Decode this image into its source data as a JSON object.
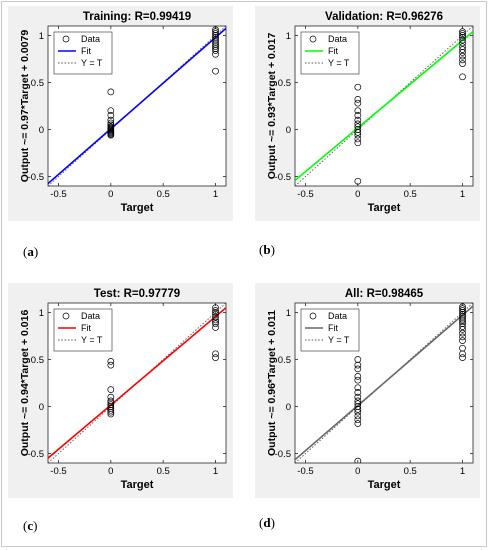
{
  "captions": [
    "a",
    "b",
    "c",
    "d"
  ],
  "chart_data": [
    {
      "type": "scatter",
      "title": "Training: R=0.99419",
      "xlabel": "Target",
      "ylabel": "Output ~= 0.97*Target + 0.0079",
      "xlim": [
        -0.6,
        1.1
      ],
      "ylim": [
        -0.6,
        1.1
      ],
      "xticks": [
        "-0.5",
        "0",
        "0.5",
        "1"
      ],
      "yticks": [
        "-0.5",
        "0",
        "0.5",
        "1"
      ],
      "legend": [
        "Data",
        "Fit",
        "Y = T"
      ],
      "legend_position": "top-left",
      "fit": {
        "slope": 0.97,
        "intercept": 0.0079,
        "color": "#0000ff"
      },
      "points_at_0": [
        0.4,
        0.2,
        0.15,
        0.1,
        0.07,
        0.05,
        0.03,
        0.02,
        0.01,
        0.0,
        -0.01,
        -0.02,
        -0.03,
        -0.04,
        -0.05,
        -0.06
      ],
      "points_at_1": [
        1.06,
        1.04,
        1.02,
        1.0,
        0.98,
        0.96,
        0.94,
        0.92,
        0.9,
        0.88,
        0.86,
        0.84,
        0.8,
        0.62
      ]
    },
    {
      "type": "scatter",
      "title": "Validation: R=0.96276",
      "xlabel": "Target",
      "ylabel": "Output ~= 0.93*Target + 0.017",
      "xlim": [
        -0.6,
        1.1
      ],
      "ylim": [
        -0.6,
        1.1
      ],
      "xticks": [
        "-0.5",
        "0",
        "0.5",
        "1"
      ],
      "yticks": [
        "-0.5",
        "0",
        "0.5",
        "1"
      ],
      "legend": [
        "Data",
        "Fit",
        "Y = T"
      ],
      "legend_position": "top-left",
      "fit": {
        "slope": 0.93,
        "intercept": 0.017,
        "color": "#00ff00"
      },
      "points_at_0": [
        0.45,
        0.32,
        0.28,
        0.2,
        0.15,
        0.1,
        0.06,
        0.03,
        0.0,
        -0.03,
        -0.06,
        -0.1,
        -0.14,
        -0.55
      ],
      "points_at_1": [
        1.04,
        1.02,
        1.0,
        0.98,
        0.95,
        0.92,
        0.88,
        0.85,
        0.82,
        0.78,
        0.74,
        0.7,
        0.56
      ]
    },
    {
      "type": "scatter",
      "title": "Test: R=0.97779",
      "xlabel": "Target",
      "ylabel": "Output ~= 0.94*Target + 0.016",
      "xlim": [
        -0.6,
        1.1
      ],
      "ylim": [
        -0.6,
        1.1
      ],
      "xticks": [
        "-0.5",
        "0",
        "0.5",
        "1"
      ],
      "yticks": [
        "-0.5",
        "0",
        "0.5",
        "1"
      ],
      "legend": [
        "Data",
        "Fit",
        "Y = T"
      ],
      "legend_position": "top-left",
      "fit": {
        "slope": 0.94,
        "intercept": 0.016,
        "color": "#ff0000"
      },
      "points_at_0": [
        0.48,
        0.44,
        0.18,
        0.1,
        0.06,
        0.04,
        0.02,
        0.0,
        -0.02,
        -0.04,
        -0.06,
        -0.08
      ],
      "points_at_1": [
        1.05,
        1.02,
        1.0,
        0.98,
        0.95,
        0.92,
        0.9,
        0.88,
        0.84,
        0.56,
        0.52
      ]
    },
    {
      "type": "scatter",
      "title": "All: R=0.98465",
      "xlabel": "Target",
      "ylabel": "Output ~= 0.96*Target + 0.011",
      "xlim": [
        -0.6,
        1.1
      ],
      "ylim": [
        -0.6,
        1.1
      ],
      "xticks": [
        "-0.5",
        "0",
        "0.5",
        "1"
      ],
      "yticks": [
        "-0.5",
        "0",
        "0.5",
        "1"
      ],
      "legend": [
        "Data",
        "Fit",
        "Y = T"
      ],
      "legend_position": "top-left",
      "fit": {
        "slope": 0.96,
        "intercept": 0.011,
        "color": "#666666"
      },
      "points_at_0": [
        0.5,
        0.44,
        0.4,
        0.32,
        0.28,
        0.2,
        0.15,
        0.1,
        0.06,
        0.03,
        0.0,
        -0.03,
        -0.06,
        -0.1,
        -0.14,
        -0.18,
        -0.58
      ],
      "points_at_1": [
        1.06,
        1.04,
        1.02,
        1.0,
        0.98,
        0.96,
        0.94,
        0.92,
        0.9,
        0.88,
        0.85,
        0.82,
        0.78,
        0.74,
        0.7,
        0.62,
        0.56,
        0.52
      ]
    }
  ]
}
